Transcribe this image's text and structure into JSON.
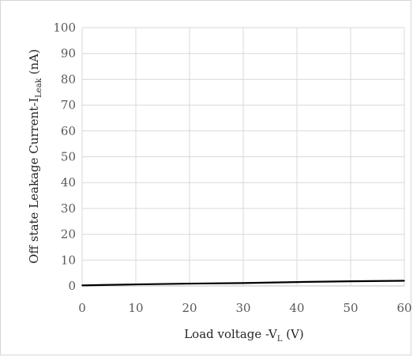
{
  "chart_data": {
    "type": "line",
    "x": [
      0,
      10,
      20,
      30,
      40,
      50,
      60
    ],
    "series": [
      {
        "values": [
          0.2,
          0.6,
          0.9,
          1.1,
          1.5,
          1.8,
          2.0
        ]
      }
    ],
    "xticks": [
      "0",
      "10",
      "20",
      "30",
      "40",
      "50",
      "60"
    ],
    "yticks": [
      "0",
      "10",
      "20",
      "30",
      "40",
      "50",
      "60",
      "70",
      "80",
      "90",
      "100"
    ],
    "xlim": [
      0,
      60
    ],
    "ylim": [
      0,
      100
    ],
    "xlabel": {
      "prefix": "Load voltage -V",
      "sub": "L",
      "suffix": " (V)"
    },
    "ylabel": {
      "prefix": "Off state Leakage Current-I",
      "sub": "Leak",
      "suffix": " (nA)"
    },
    "grid": true,
    "line_color": "#000000",
    "grid_color": "#d9d9d9"
  }
}
